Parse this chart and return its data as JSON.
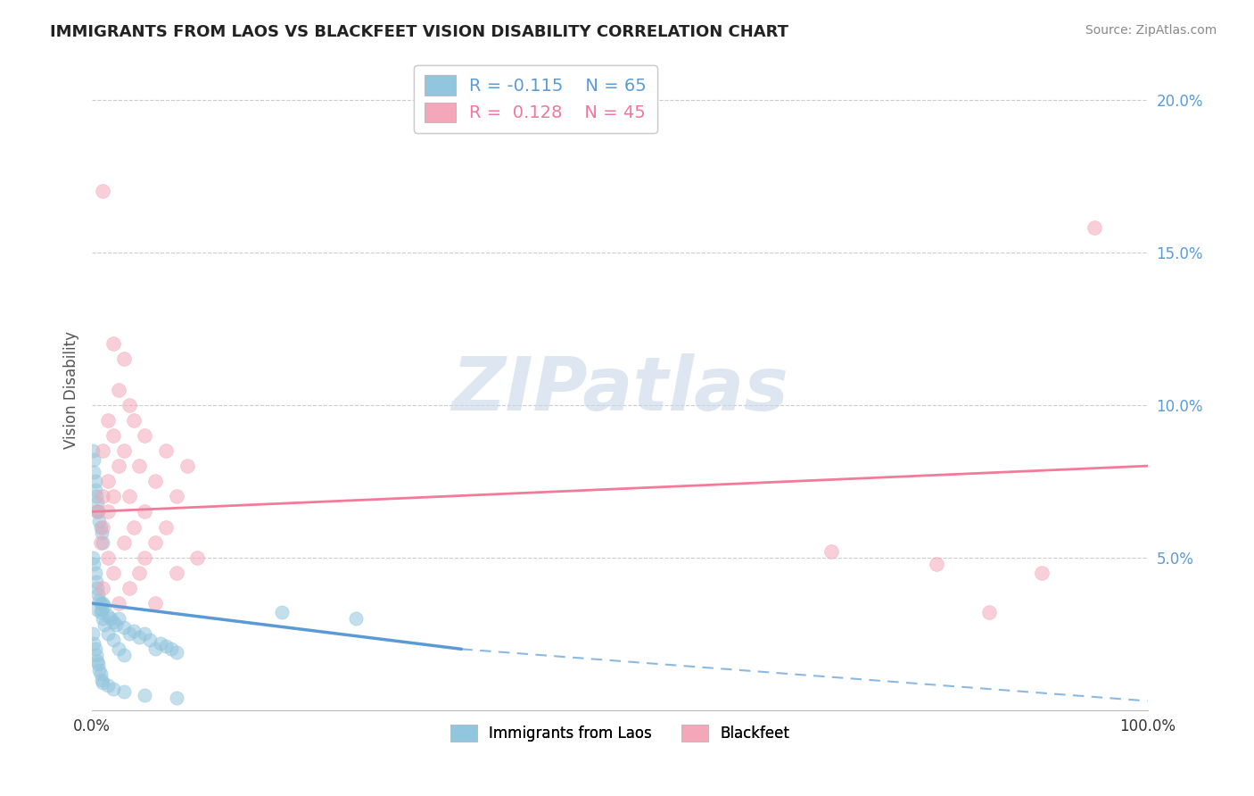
{
  "title": "IMMIGRANTS FROM LAOS VS BLACKFEET VISION DISABILITY CORRELATION CHART",
  "source": "Source: ZipAtlas.com",
  "ylabel": "Vision Disability",
  "watermark": "ZIPatlas",
  "legend_series": [
    {
      "label": "Immigrants from Laos",
      "color": "#92C5DE",
      "line_color": "#5B9BD5",
      "R": -0.115,
      "N": 65
    },
    {
      "label": "Blackfeet",
      "color": "#F4A7B9",
      "line_color": "#F4769A",
      "R": 0.128,
      "N": 45
    }
  ],
  "blue_scatter": [
    [
      0.5,
      3.3
    ],
    [
      0.8,
      3.2
    ],
    [
      1.0,
      3.5
    ],
    [
      1.2,
      3.4
    ],
    [
      1.5,
      3.1
    ],
    [
      1.8,
      3.0
    ],
    [
      2.0,
      2.9
    ],
    [
      2.3,
      2.8
    ],
    [
      2.5,
      3.0
    ],
    [
      3.0,
      2.7
    ],
    [
      3.5,
      2.5
    ],
    [
      4.0,
      2.6
    ],
    [
      4.5,
      2.4
    ],
    [
      5.0,
      2.5
    ],
    [
      5.5,
      2.3
    ],
    [
      6.0,
      2.0
    ],
    [
      6.5,
      2.2
    ],
    [
      7.0,
      2.1
    ],
    [
      7.5,
      2.0
    ],
    [
      8.0,
      1.9
    ],
    [
      0.1,
      8.5
    ],
    [
      0.2,
      8.2
    ],
    [
      0.2,
      7.8
    ],
    [
      0.3,
      7.5
    ],
    [
      0.3,
      7.2
    ],
    [
      0.4,
      7.0
    ],
    [
      0.5,
      6.8
    ],
    [
      0.5,
      6.5
    ],
    [
      0.6,
      6.5
    ],
    [
      0.7,
      6.2
    ],
    [
      0.8,
      6.0
    ],
    [
      0.9,
      5.8
    ],
    [
      1.0,
      5.5
    ],
    [
      0.1,
      5.0
    ],
    [
      0.2,
      4.8
    ],
    [
      0.3,
      4.5
    ],
    [
      0.4,
      4.2
    ],
    [
      0.5,
      4.0
    ],
    [
      0.6,
      3.8
    ],
    [
      0.7,
      3.6
    ],
    [
      0.8,
      3.5
    ],
    [
      0.9,
      3.3
    ],
    [
      1.0,
      3.0
    ],
    [
      1.2,
      2.8
    ],
    [
      1.5,
      2.5
    ],
    [
      2.0,
      2.3
    ],
    [
      2.5,
      2.0
    ],
    [
      3.0,
      1.8
    ],
    [
      0.1,
      2.5
    ],
    [
      0.2,
      2.2
    ],
    [
      0.3,
      2.0
    ],
    [
      0.4,
      1.8
    ],
    [
      0.5,
      1.6
    ],
    [
      0.6,
      1.5
    ],
    [
      0.7,
      1.3
    ],
    [
      0.8,
      1.2
    ],
    [
      0.9,
      1.0
    ],
    [
      1.0,
      0.9
    ],
    [
      1.5,
      0.8
    ],
    [
      2.0,
      0.7
    ],
    [
      3.0,
      0.6
    ],
    [
      5.0,
      0.5
    ],
    [
      8.0,
      0.4
    ],
    [
      18.0,
      3.2
    ],
    [
      25.0,
      3.0
    ]
  ],
  "pink_scatter": [
    [
      1.0,
      17.0
    ],
    [
      2.0,
      12.0
    ],
    [
      3.0,
      11.5
    ],
    [
      2.5,
      10.5
    ],
    [
      3.5,
      10.0
    ],
    [
      1.5,
      9.5
    ],
    [
      4.0,
      9.5
    ],
    [
      2.0,
      9.0
    ],
    [
      5.0,
      9.0
    ],
    [
      1.0,
      8.5
    ],
    [
      3.0,
      8.5
    ],
    [
      7.0,
      8.5
    ],
    [
      2.5,
      8.0
    ],
    [
      4.5,
      8.0
    ],
    [
      9.0,
      8.0
    ],
    [
      1.5,
      7.5
    ],
    [
      6.0,
      7.5
    ],
    [
      1.0,
      7.0
    ],
    [
      2.0,
      7.0
    ],
    [
      3.5,
      7.0
    ],
    [
      8.0,
      7.0
    ],
    [
      0.5,
      6.5
    ],
    [
      1.5,
      6.5
    ],
    [
      5.0,
      6.5
    ],
    [
      1.0,
      6.0
    ],
    [
      4.0,
      6.0
    ],
    [
      7.0,
      6.0
    ],
    [
      0.8,
      5.5
    ],
    [
      3.0,
      5.5
    ],
    [
      6.0,
      5.5
    ],
    [
      1.5,
      5.0
    ],
    [
      5.0,
      5.0
    ],
    [
      10.0,
      5.0
    ],
    [
      2.0,
      4.5
    ],
    [
      4.5,
      4.5
    ],
    [
      8.0,
      4.5
    ],
    [
      1.0,
      4.0
    ],
    [
      3.5,
      4.0
    ],
    [
      2.5,
      3.5
    ],
    [
      6.0,
      3.5
    ],
    [
      70.0,
      5.2
    ],
    [
      80.0,
      4.8
    ],
    [
      85.0,
      3.2
    ],
    [
      90.0,
      4.5
    ],
    [
      95.0,
      15.8
    ]
  ],
  "xlim": [
    0,
    100
  ],
  "ylim": [
    0,
    21
  ],
  "ytick_vals": [
    5.0,
    10.0,
    15.0,
    20.0
  ],
  "ytick_labels": [
    "5.0%",
    "10.0%",
    "15.0%",
    "20.0%"
  ],
  "xtick_left_val": 0,
  "xtick_left_label": "0.0%",
  "xtick_right_val": 100,
  "xtick_right_label": "100.0%",
  "blue_line_solid": {
    "x0": 0,
    "x1": 35,
    "y0": 3.5,
    "y1": 2.0
  },
  "blue_line_dashed": {
    "x0": 35,
    "x1": 100,
    "y0": 2.0,
    "y1": 0.3
  },
  "pink_line": {
    "x0": 0,
    "x1": 100,
    "y0": 6.5,
    "y1": 8.0
  },
  "scatter_size_blue": 120,
  "scatter_size_pink": 130,
  "scatter_alpha": 0.55,
  "blue_scatter_color": "#92C5DE",
  "pink_scatter_color": "#F4A7B9",
  "blue_line_color": "#5B9BD5",
  "pink_line_color": "#F47A9A",
  "ytick_color": "#5B9BD5",
  "grid_color": "#CCCCCC",
  "background_color": "#FFFFFF"
}
